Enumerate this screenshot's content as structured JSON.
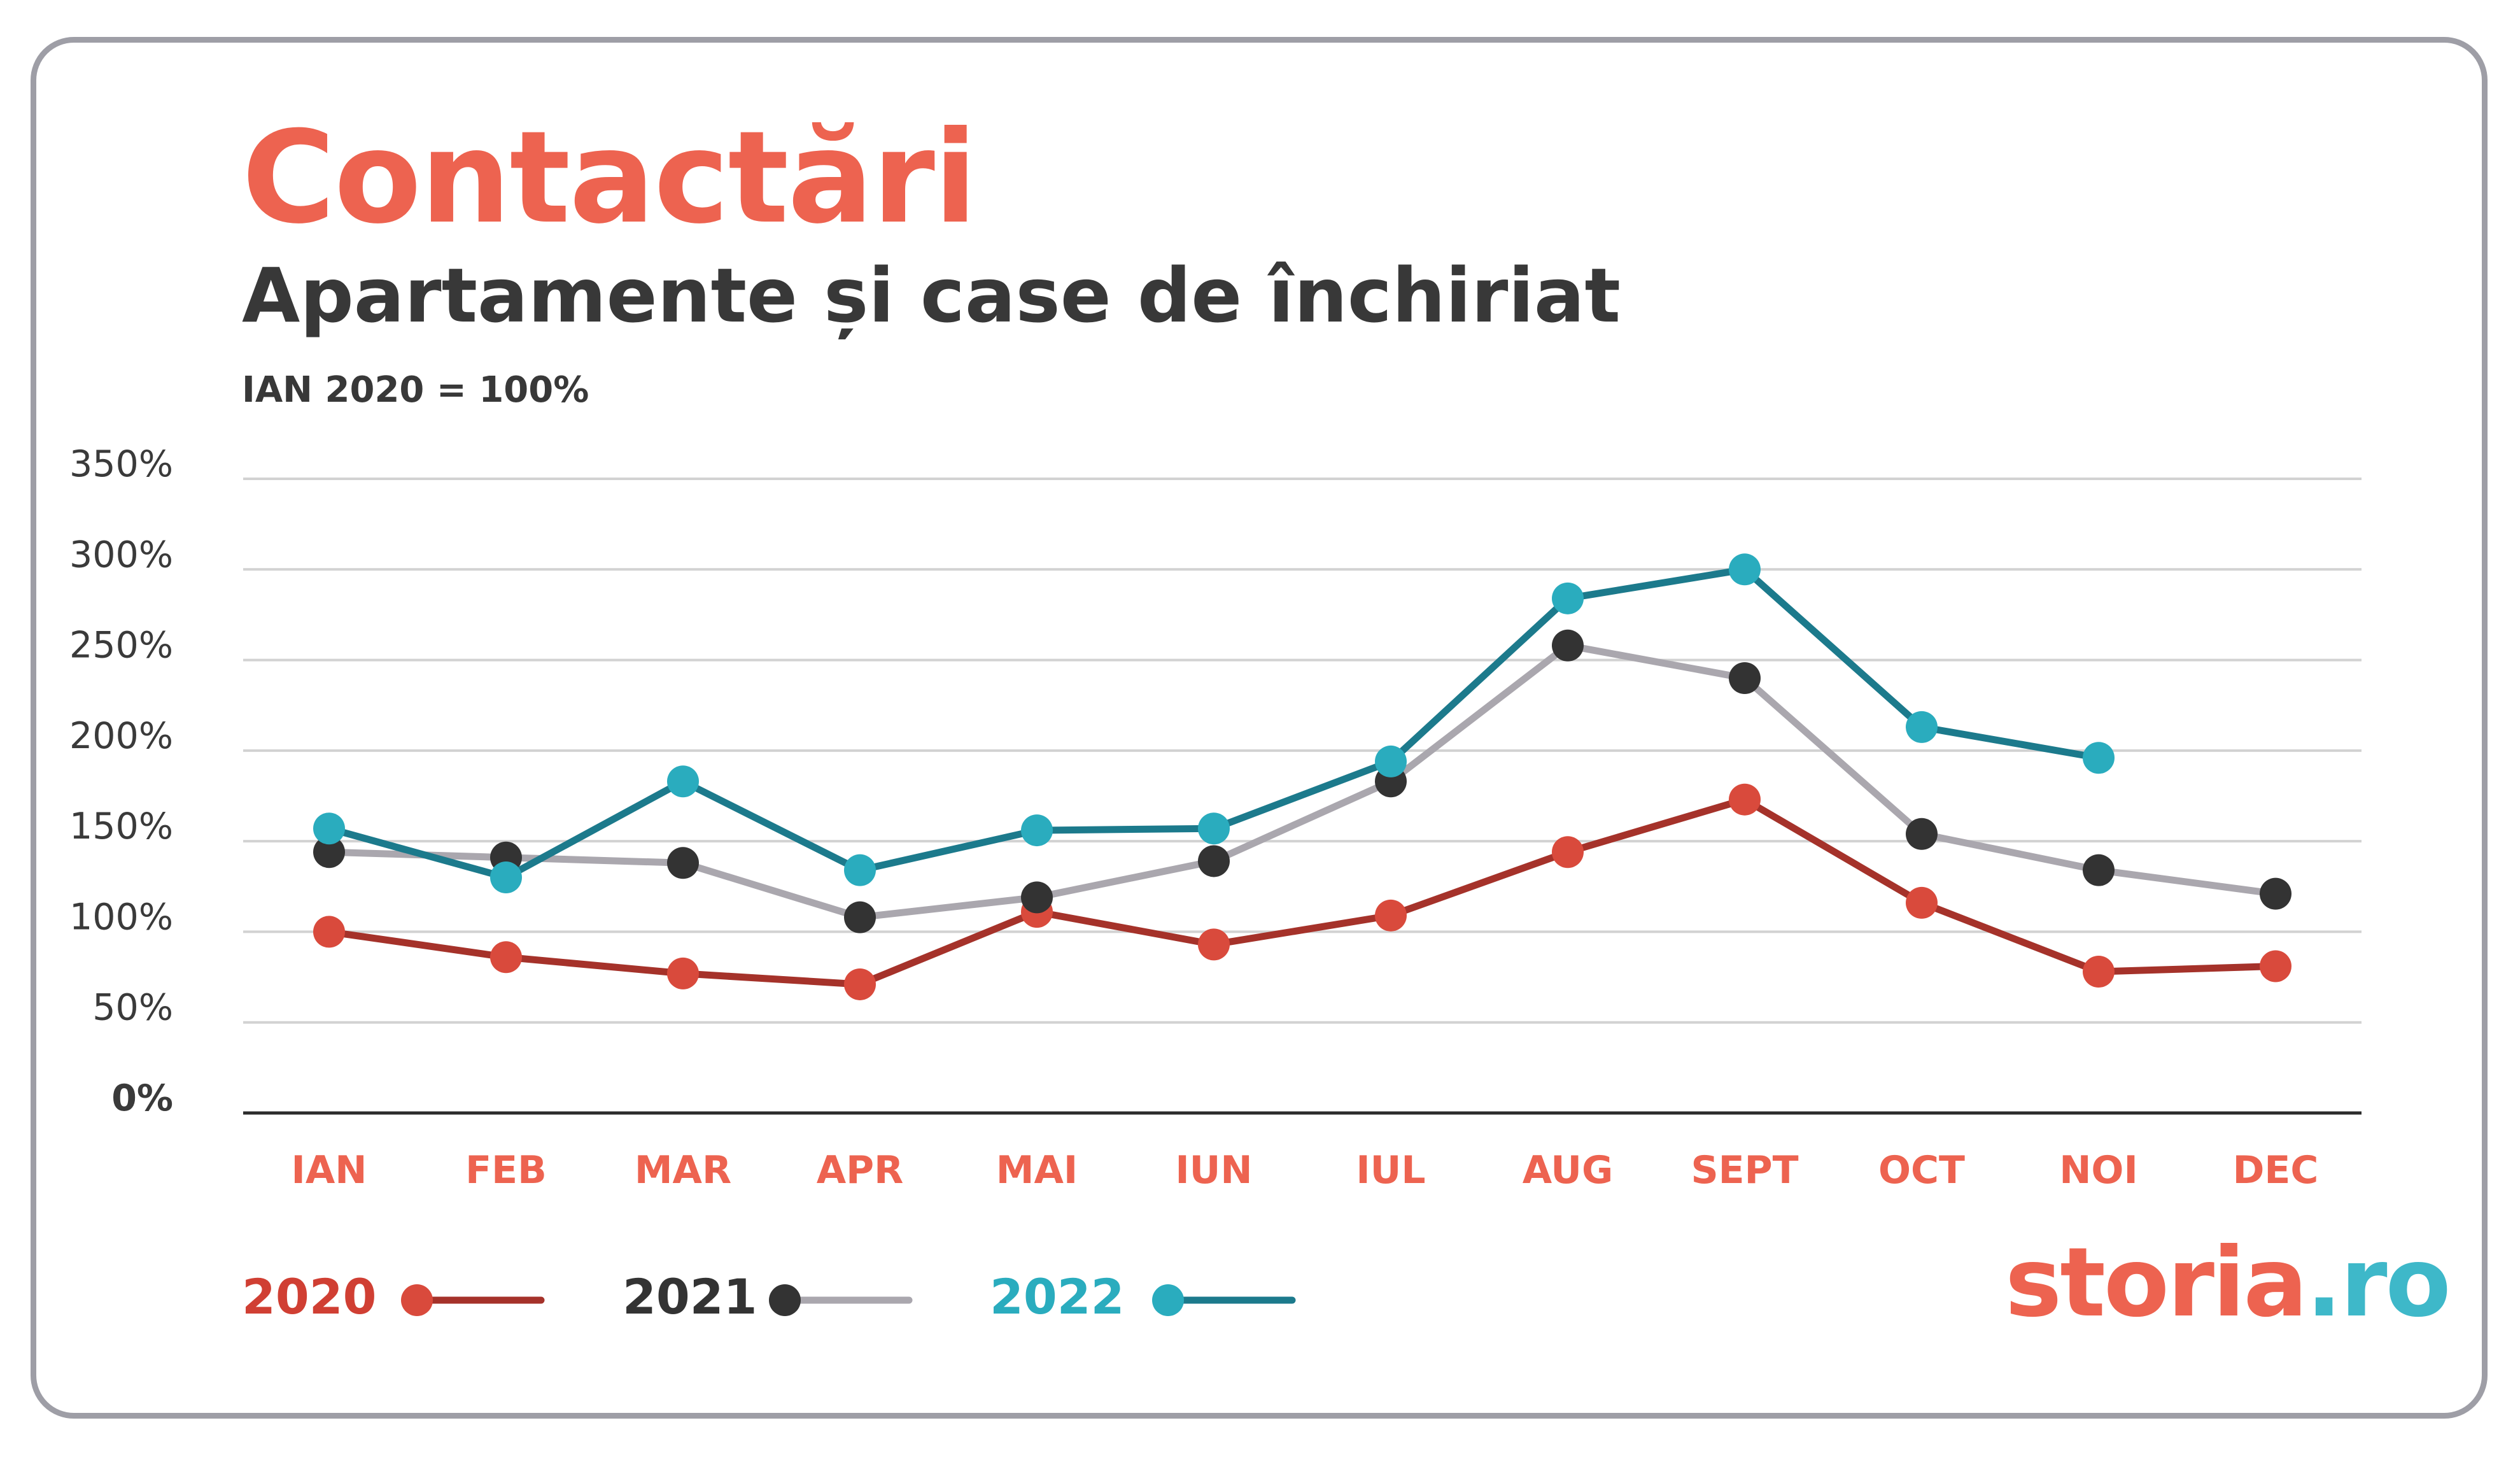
{
  "title": "Contactări",
  "subtitle": "Apartamente și case de închiriat",
  "note": "IAN 2020 = 100%",
  "brand": {
    "part1": "storia",
    "part2": ".ro"
  },
  "colors": {
    "brand": "#ed6350",
    "s2020_line": "#a5322a",
    "s2020_dot": "#d94a3c",
    "s2021_line": "#aaa7ae",
    "s2021_dot": "#333333",
    "s2022_line": "#1c7a8c",
    "s2022_dot": "#2aacbe",
    "grid": "#d2d2d2",
    "axis": "#2b2b2b"
  },
  "chart_data": {
    "type": "line",
    "title": "Contactări",
    "subtitle": "Apartamente și case de închiriat",
    "ylabel": "IAN 2020 = 100%",
    "xlabel": "",
    "categories": [
      "IAN",
      "FEB",
      "MAR",
      "APR",
      "MAI",
      "IUN",
      "IUL",
      "AUG",
      "SEPT",
      "OCT",
      "NOI",
      "DEC"
    ],
    "yticks": [
      0,
      50,
      100,
      150,
      200,
      250,
      300,
      350
    ],
    "ytick_labels": [
      "0%",
      "50%",
      "100%",
      "150%",
      "200%",
      "250%",
      "300%",
      "350%"
    ],
    "ylim": [
      0,
      350
    ],
    "grid": true,
    "legend": "bottom-left",
    "series": [
      {
        "name": "2020",
        "values": [
          100,
          86,
          77,
          71,
          111,
          93,
          109,
          144,
          173,
          116,
          78,
          81
        ]
      },
      {
        "name": "2021",
        "values": [
          144,
          141,
          138,
          108,
          119,
          139,
          183,
          258,
          240,
          154,
          134,
          121
        ]
      },
      {
        "name": "2022",
        "values": [
          157,
          130,
          183,
          134,
          156,
          157,
          194,
          284,
          300,
          213,
          196,
          null
        ]
      }
    ]
  }
}
